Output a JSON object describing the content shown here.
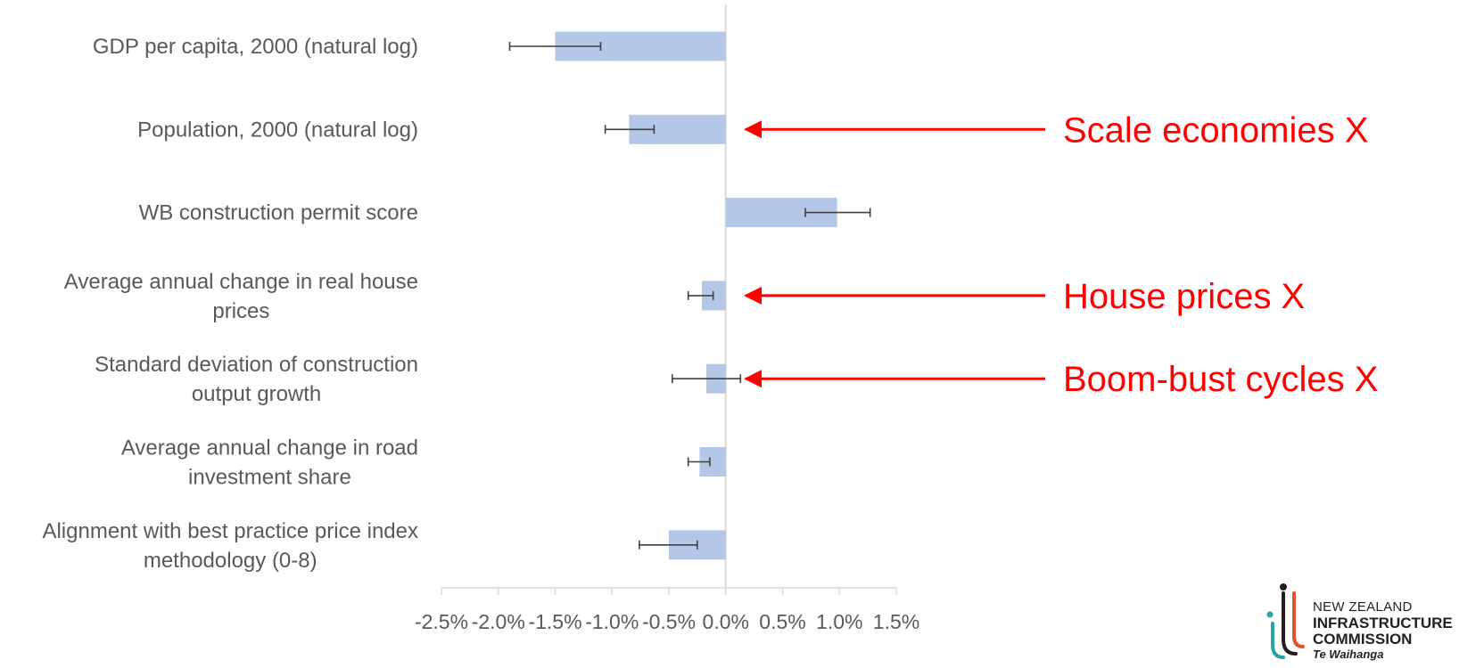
{
  "chart_data": {
    "type": "bar",
    "orientation": "horizontal",
    "title": "",
    "xlabel": "",
    "ylabel": "",
    "categories": [
      [
        "GDP per capita, 2000 (natural log)"
      ],
      [
        "Population, 2000 (natural log)"
      ],
      [
        "WB construction permit score"
      ],
      [
        "Average annual change in real house",
        "prices"
      ],
      [
        "Standard deviation of construction",
        "output growth"
      ],
      [
        "Average annual change in road",
        "investment share"
      ],
      [
        "Alignment with best practice price index",
        "methodology (0-8)"
      ]
    ],
    "values": [
      -1.5,
      -0.85,
      0.98,
      -0.21,
      -0.17,
      -0.23,
      -0.5
    ],
    "error_low": [
      -1.9,
      -1.06,
      0.7,
      -0.33,
      -0.47,
      -0.33,
      -0.76
    ],
    "error_high": [
      -1.1,
      -0.63,
      1.27,
      -0.11,
      0.13,
      -0.14,
      -0.25
    ],
    "xlim": [
      -2.5,
      1.5
    ],
    "x_ticks": [
      -2.5,
      -2.0,
      -1.5,
      -1.0,
      -0.5,
      0.0,
      0.5,
      1.0,
      1.5
    ],
    "x_tick_labels": [
      "-2.5%",
      "-2.0%",
      "-1.5%",
      "-1.0%",
      "-0.5%",
      "0.0%",
      "0.5%",
      "1.0%",
      "1.5%"
    ],
    "bar_color": "#b4c7e7",
    "annotations": [
      {
        "text": "Scale economies X",
        "category_index": 1
      },
      {
        "text": "House prices X",
        "category_index": 3
      },
      {
        "text": "Boom-bust cycles X",
        "category_index": 4
      }
    ],
    "annotation_color": "#ff0000"
  },
  "logo": {
    "line1": "NEW ZEALAND",
    "line2": "INFRASTRUCTURE",
    "line3": "COMMISSION",
    "line4": "Te Waihanga"
  }
}
